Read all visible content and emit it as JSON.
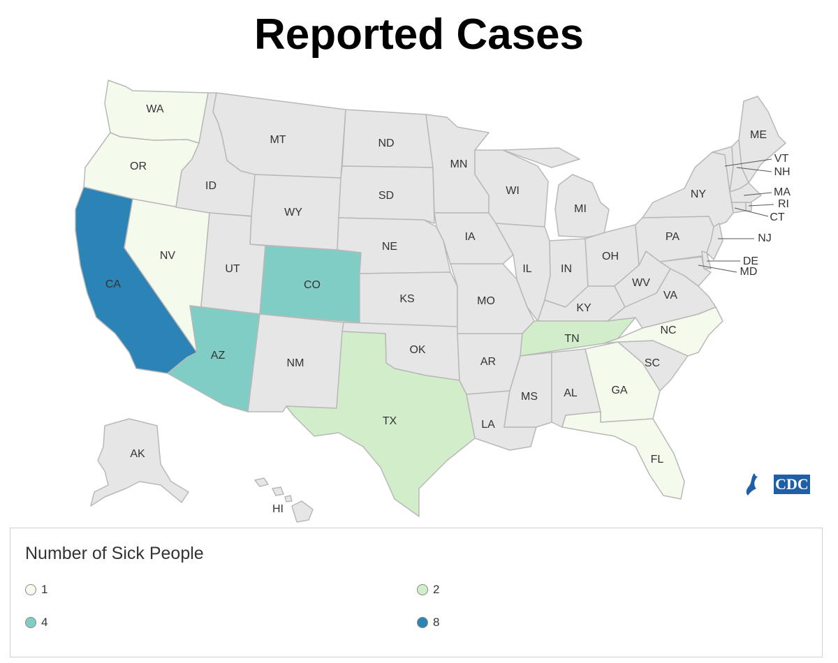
{
  "title": "Reported Cases",
  "colors": {
    "none": "#e6e6e6",
    "c1": "#f4faec",
    "c2": "#d2edca",
    "c4": "#7fcdc5",
    "c8": "#2b83b6",
    "border": "#b8b8b8"
  },
  "states": {
    "WA": {
      "label": "WA",
      "cases": 1
    },
    "OR": {
      "label": "OR",
      "cases": 1
    },
    "CA": {
      "label": "CA",
      "cases": 8
    },
    "NV": {
      "label": "NV",
      "cases": 1
    },
    "ID": {
      "label": "ID",
      "cases": 0
    },
    "MT": {
      "label": "MT",
      "cases": 0
    },
    "WY": {
      "label": "WY",
      "cases": 0
    },
    "UT": {
      "label": "UT",
      "cases": 0
    },
    "AZ": {
      "label": "AZ",
      "cases": 4
    },
    "CO": {
      "label": "CO",
      "cases": 4
    },
    "NM": {
      "label": "NM",
      "cases": 0
    },
    "ND": {
      "label": "ND",
      "cases": 0
    },
    "SD": {
      "label": "SD",
      "cases": 0
    },
    "NE": {
      "label": "NE",
      "cases": 0
    },
    "KS": {
      "label": "KS",
      "cases": 0
    },
    "OK": {
      "label": "OK",
      "cases": 0
    },
    "TX": {
      "label": "TX",
      "cases": 2
    },
    "MN": {
      "label": "MN",
      "cases": 0
    },
    "IA": {
      "label": "IA",
      "cases": 0
    },
    "MO": {
      "label": "MO",
      "cases": 0
    },
    "AR": {
      "label": "AR",
      "cases": 0
    },
    "LA": {
      "label": "LA",
      "cases": 0
    },
    "WI": {
      "label": "WI",
      "cases": 0
    },
    "IL": {
      "label": "IL",
      "cases": 0
    },
    "MI": {
      "label": "MI",
      "cases": 0
    },
    "IN": {
      "label": "IN",
      "cases": 0
    },
    "OH": {
      "label": "OH",
      "cases": 0
    },
    "KY": {
      "label": "KY",
      "cases": 0
    },
    "TN": {
      "label": "TN",
      "cases": 2
    },
    "MS": {
      "label": "MS",
      "cases": 0
    },
    "AL": {
      "label": "AL",
      "cases": 0
    },
    "GA": {
      "label": "GA",
      "cases": 1
    },
    "FL": {
      "label": "FL",
      "cases": 1
    },
    "SC": {
      "label": "SC",
      "cases": 0
    },
    "NC": {
      "label": "NC",
      "cases": 1
    },
    "VA": {
      "label": "VA",
      "cases": 0
    },
    "WV": {
      "label": "WV",
      "cases": 0
    },
    "PA": {
      "label": "PA",
      "cases": 0
    },
    "NY": {
      "label": "NY",
      "cases": 0
    },
    "ME": {
      "label": "ME",
      "cases": 0
    },
    "VT": {
      "label": "VT",
      "cases": 0
    },
    "NH": {
      "label": "NH",
      "cases": 0
    },
    "MA": {
      "label": "MA",
      "cases": 0
    },
    "RI": {
      "label": "RI",
      "cases": 0
    },
    "CT": {
      "label": "CT",
      "cases": 0
    },
    "NJ": {
      "label": "NJ",
      "cases": 0
    },
    "DE": {
      "label": "DE",
      "cases": 0
    },
    "MD": {
      "label": "MD",
      "cases": 0
    },
    "AK": {
      "label": "AK",
      "cases": 0
    },
    "HI": {
      "label": "HI",
      "cases": 0
    }
  },
  "legend": {
    "title": "Number of Sick People",
    "items": [
      {
        "label": "1",
        "color": "#f4faec"
      },
      {
        "label": "2",
        "color": "#d2edca"
      },
      {
        "label": "4",
        "color": "#7fcdc5"
      },
      {
        "label": "8",
        "color": "#2b83b6"
      }
    ]
  },
  "logo": {
    "text": "CDC",
    "icon": "hhs-eagle-icon",
    "color": "#1f5fa8"
  }
}
